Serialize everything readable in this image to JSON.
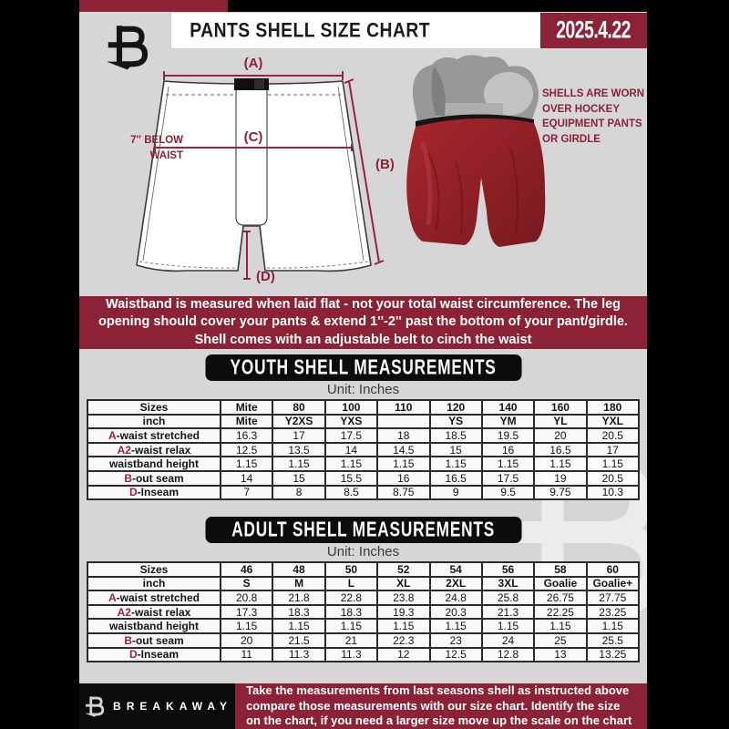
{
  "header": {
    "title": "PANTS SHELL SIZE CHART",
    "date": "2025.4.22"
  },
  "diagram": {
    "label_a": "(A)",
    "label_b": "(B)",
    "label_c": "(C)",
    "label_d": "(D)",
    "below_waist_note": "7'' BELOW WAIST",
    "photo_note": "SHELLS ARE WORN OVER HOCKEY EQUIPMENT PANTS OR GIRDLE"
  },
  "notice_banner": {
    "text": "Waistband is measured when laid flat - not your total waist circumference. The leg opening should cover your pants & extend 1''-2'' past the bottom of your pant/girdle. Shell comes with an adjustable belt to cinch the waist"
  },
  "youth_section": {
    "title": "YOUTH SHELL MEASUREMENTS",
    "unit": "Unit: Inches",
    "table": {
      "rows": [
        {
          "prefix": "",
          "label": "Sizes",
          "header": true,
          "values": [
            "Mite",
            "80",
            "100",
            "110",
            "120",
            "140",
            "160",
            "180"
          ]
        },
        {
          "prefix": "",
          "label": "inch",
          "header": true,
          "values": [
            "Mite",
            "Y2XS",
            "YXS",
            "",
            "YS",
            "YM",
            "YL",
            "YXL"
          ]
        },
        {
          "prefix": "A",
          "label": "-waist stretched",
          "values": [
            "16.3",
            "17",
            "17.5",
            "18",
            "18.5",
            "19.5",
            "20",
            "20.5"
          ]
        },
        {
          "prefix": "A2",
          "label": "-waist relax",
          "values": [
            "12.5",
            "13.5",
            "14",
            "14.5",
            "15",
            "16",
            "16.5",
            "17"
          ]
        },
        {
          "prefix": "",
          "label": "waistband height",
          "values": [
            "1.15",
            "1.15",
            "1.15",
            "1.15",
            "1.15",
            "1.15",
            "1.15",
            "1.15"
          ]
        },
        {
          "prefix": "B",
          "label": "-out seam",
          "values": [
            "14",
            "15",
            "15.5",
            "16",
            "16.5",
            "17.5",
            "19",
            "20.5"
          ]
        },
        {
          "prefix": "D",
          "label": "-Inseam",
          "values": [
            "7",
            "8",
            "8.5",
            "8.75",
            "9",
            "9.5",
            "9.75",
            "10.3"
          ]
        }
      ]
    }
  },
  "adult_section": {
    "title": "ADULT SHELL MEASUREMENTS",
    "unit": "Unit: Inches",
    "table": {
      "rows": [
        {
          "prefix": "",
          "label": "Sizes",
          "header": true,
          "values": [
            "46",
            "48",
            "50",
            "52",
            "54",
            "56",
            "58",
            "60"
          ]
        },
        {
          "prefix": "",
          "label": "inch",
          "header": true,
          "values": [
            "S",
            "M",
            "L",
            "XL",
            "2XL",
            "3XL",
            "Goalie",
            "Goalie+"
          ]
        },
        {
          "prefix": "A",
          "label": "-waist stretched",
          "values": [
            "20.8",
            "21.8",
            "22.8",
            "23.8",
            "24.8",
            "25.8",
            "26.75",
            "27.75"
          ]
        },
        {
          "prefix": "A2",
          "label": "-waist relax",
          "values": [
            "17.3",
            "18.3",
            "18.3",
            "19.3",
            "20.3",
            "21.3",
            "22.25",
            "23.25"
          ]
        },
        {
          "prefix": "",
          "label": "waistband height",
          "values": [
            "1.15",
            "1.15",
            "1.15",
            "1.15",
            "1.15",
            "1.15",
            "1.15",
            "1.15"
          ]
        },
        {
          "prefix": "B",
          "label": "-out seam",
          "values": [
            "20",
            "21.5",
            "21",
            "22.3",
            "23",
            "24",
            "25",
            "25.5"
          ]
        },
        {
          "prefix": "D",
          "label": "-Inseam",
          "values": [
            "11",
            "11.3",
            "11.3",
            "12",
            "12.5",
            "12.8",
            "13",
            "13.25"
          ]
        }
      ]
    }
  },
  "footer": {
    "brand": "BREAKAWAY",
    "text": "Take the measurements from last seasons shell as instructed above compare those measurements  with our size chart. Identify the size on the chart, if you need a larger size move up the scale on the chart"
  },
  "colors": {
    "maroon": "#8b2236",
    "black": "#0b0b0b",
    "background_gray": "#d6d6d8",
    "shell_red": "#a8262e"
  }
}
